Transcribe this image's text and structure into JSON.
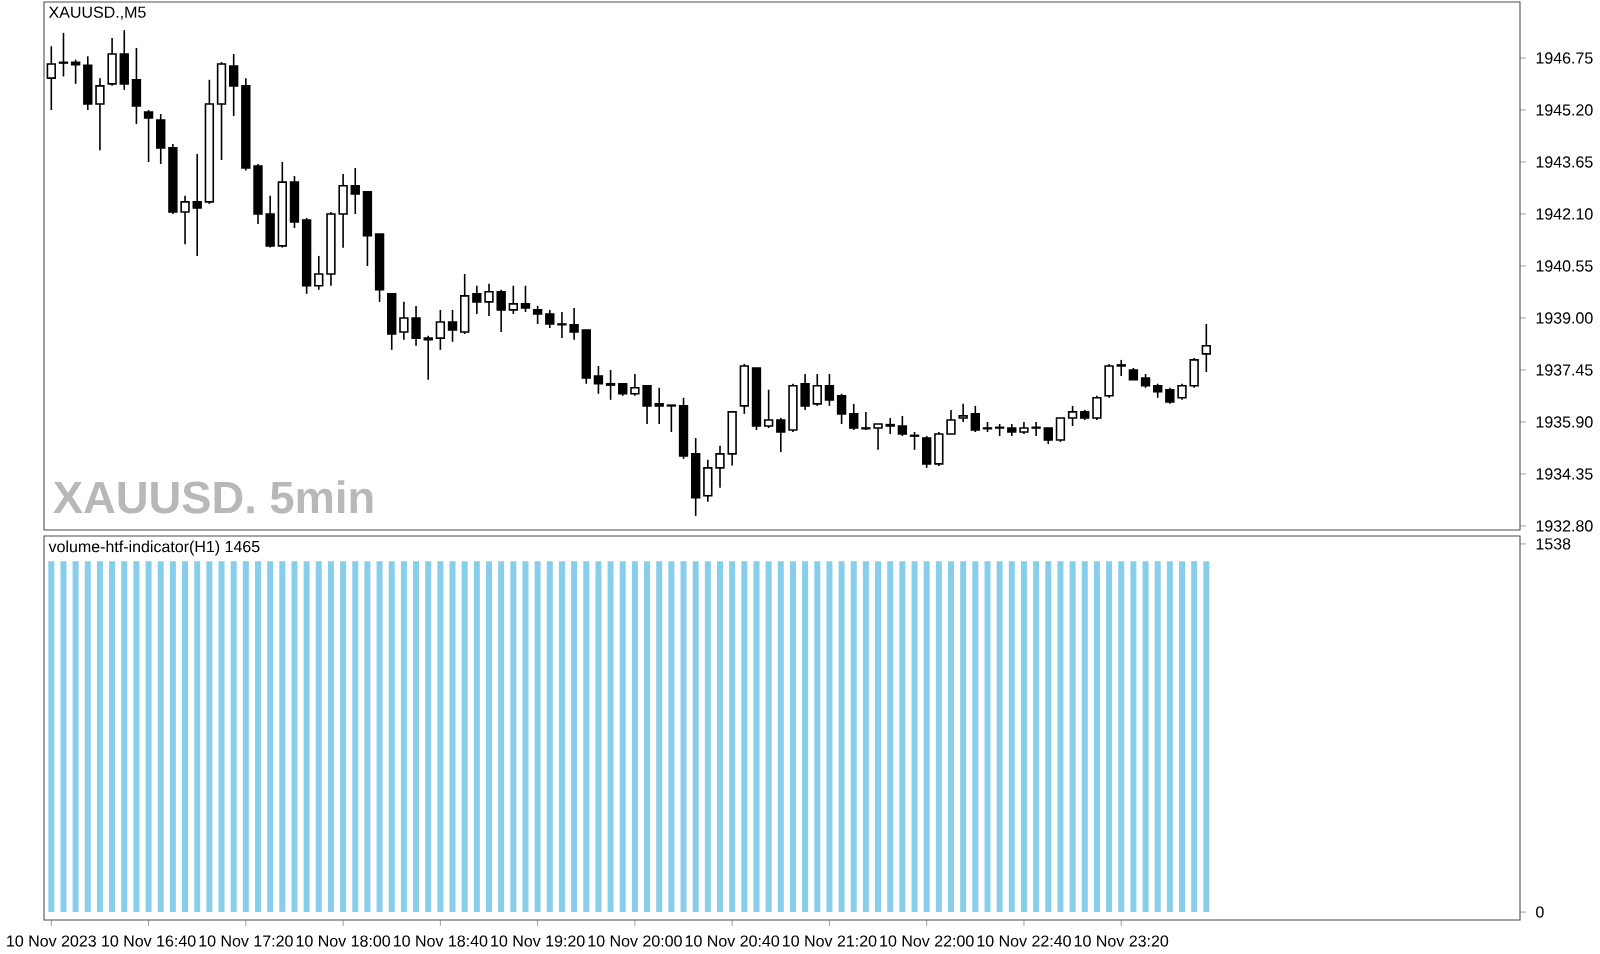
{
  "chart_data": [
    {
      "type": "candlestick",
      "title": "XAUUSD.,M5",
      "color": "#000000",
      "annotations": [
        "XAUUSD.  5min"
      ],
      "x": [
        "2023-11-10T16:00",
        "2023-11-10T16:05",
        "2023-11-10T16:10",
        "2023-11-10T16:15",
        "2023-11-10T16:20",
        "2023-11-10T16:25",
        "2023-11-10T16:30",
        "2023-11-10T16:35",
        "2023-11-10T16:40",
        "2023-11-10T16:45",
        "2023-11-10T16:50",
        "2023-11-10T16:55",
        "2023-11-10T17:00",
        "2023-11-10T17:05",
        "2023-11-10T17:10",
        "2023-11-10T17:15",
        "2023-11-10T17:20",
        "2023-11-10T17:25",
        "2023-11-10T17:30",
        "2023-11-10T17:35",
        "2023-11-10T17:40",
        "2023-11-10T17:45",
        "2023-11-10T17:50",
        "2023-11-10T17:55",
        "2023-11-10T18:00",
        "2023-11-10T18:05",
        "2023-11-10T18:10",
        "2023-11-10T18:15",
        "2023-11-10T18:20",
        "2023-11-10T18:25",
        "2023-11-10T18:30",
        "2023-11-10T18:35",
        "2023-11-10T18:40",
        "2023-11-10T18:45",
        "2023-11-10T18:50",
        "2023-11-10T18:55",
        "2023-11-10T19:00",
        "2023-11-10T19:05",
        "2023-11-10T19:10",
        "2023-11-10T19:15",
        "2023-11-10T19:20",
        "2023-11-10T19:25",
        "2023-11-10T19:30",
        "2023-11-10T19:35",
        "2023-11-10T19:40",
        "2023-11-10T19:45",
        "2023-11-10T19:50",
        "2023-11-10T19:55",
        "2023-11-10T20:00",
        "2023-11-10T20:05",
        "2023-11-10T20:10",
        "2023-11-10T20:15",
        "2023-11-10T20:20",
        "2023-11-10T20:25",
        "2023-11-10T20:30",
        "2023-11-10T20:35",
        "2023-11-10T20:40",
        "2023-11-10T20:45",
        "2023-11-10T20:50",
        "2023-11-10T20:55",
        "2023-11-10T21:00",
        "2023-11-10T21:05",
        "2023-11-10T21:10",
        "2023-11-10T21:15",
        "2023-11-10T21:20",
        "2023-11-10T21:25",
        "2023-11-10T21:30",
        "2023-11-10T21:35",
        "2023-11-10T21:40",
        "2023-11-10T21:45",
        "2023-11-10T21:50",
        "2023-11-10T21:55",
        "2023-11-10T22:00",
        "2023-11-10T22:05",
        "2023-11-10T22:10",
        "2023-11-10T22:15",
        "2023-11-10T22:20",
        "2023-11-10T22:25",
        "2023-11-10T22:30",
        "2023-11-10T22:35",
        "2023-11-10T22:40",
        "2023-11-10T22:45",
        "2023-11-10T22:50",
        "2023-11-10T22:55",
        "2023-11-10T23:00",
        "2023-11-10T23:05",
        "2023-11-10T23:10",
        "2023-11-10T23:15",
        "2023-11-10T23:20",
        "2023-11-10T23:25",
        "2023-11-10T23:30",
        "2023-11-10T23:35",
        "2023-11-10T23:40",
        "2023-11-10T23:45",
        "2023-11-10T23:50",
        "2023-11-10T23:55"
      ],
      "ohlc": [
        [
          1946.15,
          1947.1,
          1945.2,
          1946.57
        ],
        [
          1946.6,
          1947.5,
          1946.2,
          1946.62
        ],
        [
          1946.62,
          1946.7,
          1945.98,
          1946.55
        ],
        [
          1946.53,
          1946.8,
          1945.2,
          1945.38
        ],
        [
          1945.38,
          1946.15,
          1944.0,
          1945.92
        ],
        [
          1945.98,
          1947.35,
          1945.92,
          1946.87
        ],
        [
          1946.87,
          1947.58,
          1945.8,
          1945.98
        ],
        [
          1946.1,
          1947.05,
          1944.78,
          1945.32
        ],
        [
          1945.14,
          1945.2,
          1943.65,
          1944.96
        ],
        [
          1944.9,
          1945.08,
          1943.59,
          1944.07
        ],
        [
          1944.07,
          1944.19,
          1942.1,
          1942.16
        ],
        [
          1942.16,
          1942.64,
          1941.2,
          1942.46
        ],
        [
          1942.46,
          1943.89,
          1940.85,
          1942.28
        ],
        [
          1942.46,
          1946.1,
          1942.4,
          1945.38
        ],
        [
          1945.38,
          1946.63,
          1943.71,
          1946.57
        ],
        [
          1946.51,
          1946.87,
          1945.02,
          1945.92
        ],
        [
          1945.92,
          1946.15,
          1943.4,
          1943.47
        ],
        [
          1943.53,
          1943.59,
          1941.8,
          1942.1
        ],
        [
          1942.1,
          1942.64,
          1941.1,
          1941.15
        ],
        [
          1941.15,
          1943.65,
          1941.1,
          1943.05
        ],
        [
          1943.05,
          1943.23,
          1941.68,
          1941.86
        ],
        [
          1941.92,
          1941.98,
          1939.72,
          1939.96
        ],
        [
          1939.96,
          1940.85,
          1939.84,
          1940.31
        ],
        [
          1940.31,
          1942.16,
          1939.96,
          1942.1
        ],
        [
          1942.1,
          1943.29,
          1941.09,
          1942.94
        ],
        [
          1942.94,
          1943.47,
          1942.1,
          1942.7
        ],
        [
          1942.76,
          1942.76,
          1940.55,
          1941.45
        ],
        [
          1941.5,
          1941.5,
          1939.48,
          1939.84
        ],
        [
          1939.72,
          1939.72,
          1938.05,
          1938.52
        ],
        [
          1938.58,
          1939.48,
          1938.35,
          1939.0
        ],
        [
          1939.0,
          1939.36,
          1938.17,
          1938.4
        ],
        [
          1938.4,
          1938.47,
          1937.16,
          1938.35
        ],
        [
          1938.4,
          1939.24,
          1938.05,
          1938.88
        ],
        [
          1938.88,
          1939.24,
          1938.29,
          1938.64
        ],
        [
          1938.58,
          1940.31,
          1938.52,
          1939.66
        ],
        [
          1939.72,
          1939.96,
          1939.12,
          1939.48
        ],
        [
          1939.48,
          1940.02,
          1939.06,
          1939.78
        ],
        [
          1939.78,
          1939.84,
          1938.58,
          1939.24
        ],
        [
          1939.24,
          1939.96,
          1939.12,
          1939.42
        ],
        [
          1939.42,
          1939.96,
          1939.18,
          1939.3
        ],
        [
          1939.24,
          1939.36,
          1938.82,
          1939.12
        ],
        [
          1939.12,
          1939.24,
          1938.7,
          1938.82
        ],
        [
          1938.82,
          1939.18,
          1938.4,
          1938.8
        ],
        [
          1938.8,
          1939.3,
          1938.35,
          1938.58
        ],
        [
          1938.64,
          1938.64,
          1937.04,
          1937.21
        ],
        [
          1937.27,
          1937.57,
          1936.74,
          1937.04
        ],
        [
          1937.04,
          1937.45,
          1936.56,
          1937.0
        ],
        [
          1937.04,
          1937.04,
          1936.68,
          1936.74
        ],
        [
          1936.74,
          1937.33,
          1936.68,
          1936.92
        ],
        [
          1936.98,
          1936.98,
          1935.84,
          1936.38
        ],
        [
          1936.44,
          1936.92,
          1935.84,
          1936.38
        ],
        [
          1936.4,
          1936.4,
          1935.6,
          1936.38
        ],
        [
          1936.38,
          1936.62,
          1934.8,
          1934.89
        ],
        [
          1934.95,
          1935.42,
          1933.1,
          1933.64
        ],
        [
          1933.7,
          1934.77,
          1933.52,
          1934.53
        ],
        [
          1934.53,
          1935.19,
          1933.94,
          1934.95
        ],
        [
          1934.95,
          1936.2,
          1934.6,
          1936.2
        ],
        [
          1936.38,
          1937.63,
          1936.14,
          1937.57
        ],
        [
          1937.51,
          1937.51,
          1935.66,
          1935.78
        ],
        [
          1935.78,
          1936.86,
          1935.72,
          1935.96
        ],
        [
          1935.96,
          1936.02,
          1935.0,
          1935.6
        ],
        [
          1935.66,
          1937.04,
          1935.6,
          1936.98
        ],
        [
          1937.04,
          1937.33,
          1936.26,
          1936.38
        ],
        [
          1936.44,
          1937.33,
          1936.38,
          1936.98
        ],
        [
          1936.98,
          1937.33,
          1936.38,
          1936.56
        ],
        [
          1936.68,
          1936.74,
          1935.84,
          1936.14
        ],
        [
          1936.14,
          1936.44,
          1935.66,
          1935.72
        ],
        [
          1935.72,
          1936.2,
          1935.66,
          1935.7
        ],
        [
          1935.72,
          1935.84,
          1935.07,
          1935.84
        ],
        [
          1935.82,
          1936.02,
          1935.54,
          1935.78
        ],
        [
          1935.78,
          1936.08,
          1935.48,
          1935.54
        ],
        [
          1935.5,
          1935.6,
          1935.07,
          1935.48
        ],
        [
          1935.42,
          1935.48,
          1934.53,
          1934.65
        ],
        [
          1934.65,
          1935.6,
          1934.59,
          1935.54
        ],
        [
          1935.54,
          1936.26,
          1935.54,
          1935.96
        ],
        [
          1936.02,
          1936.44,
          1935.9,
          1936.08
        ],
        [
          1936.14,
          1936.38,
          1935.6,
          1935.66
        ],
        [
          1935.72,
          1935.9,
          1935.6,
          1935.7
        ],
        [
          1935.74,
          1935.84,
          1935.48,
          1935.72
        ],
        [
          1935.72,
          1935.84,
          1935.48,
          1935.6
        ],
        [
          1935.6,
          1935.9,
          1935.54,
          1935.72
        ],
        [
          1935.72,
          1935.9,
          1935.48,
          1935.74
        ],
        [
          1935.72,
          1935.72,
          1935.24,
          1935.36
        ],
        [
          1935.36,
          1936.02,
          1935.3,
          1936.02
        ],
        [
          1936.02,
          1936.38,
          1935.78,
          1936.2
        ],
        [
          1936.2,
          1936.26,
          1935.96,
          1936.02
        ],
        [
          1936.02,
          1936.68,
          1935.96,
          1936.62
        ],
        [
          1936.68,
          1937.63,
          1936.62,
          1937.57
        ],
        [
          1937.57,
          1937.75,
          1937.27,
          1937.6
        ],
        [
          1937.45,
          1937.51,
          1937.16,
          1937.16
        ],
        [
          1937.21,
          1937.33,
          1936.92,
          1936.98
        ],
        [
          1936.98,
          1937.04,
          1936.62,
          1936.8
        ],
        [
          1936.86,
          1936.92,
          1936.44,
          1936.5
        ],
        [
          1936.62,
          1937.04,
          1936.56,
          1936.98
        ],
        [
          1936.98,
          1937.81,
          1936.92,
          1937.75
        ],
        [
          1937.93,
          1938.82,
          1937.39,
          1938.17
        ]
      ],
      "xlim": [
        "2023-11-10T15:57",
        "2023-11-11T02:04"
      ],
      "ylim": [
        1932.68,
        1948.42
      ],
      "yticks": [
        {
          "value": 1932.8,
          "label": "1932.80"
        },
        {
          "value": 1934.35,
          "label": "1934.35"
        },
        {
          "value": 1935.9,
          "label": "1935.90"
        },
        {
          "value": 1937.45,
          "label": "1937.45"
        },
        {
          "value": 1939.0,
          "label": "1939.00"
        },
        {
          "value": 1940.55,
          "label": "1940.55"
        },
        {
          "value": 1942.1,
          "label": "1942.10"
        },
        {
          "value": 1943.65,
          "label": "1943.65"
        },
        {
          "value": 1945.2,
          "label": "1945.20"
        },
        {
          "value": 1946.75,
          "label": "1946.75"
        }
      ],
      "tick_labels": "y"
    },
    {
      "type": "bar",
      "title": "volume-htf-indicator(H1) 1465",
      "color": "#87ceeb",
      "x": [
        "2023-11-10T16:00",
        "2023-11-10T16:05",
        "2023-11-10T16:10",
        "2023-11-10T16:15",
        "2023-11-10T16:20",
        "2023-11-10T16:25",
        "2023-11-10T16:30",
        "2023-11-10T16:35",
        "2023-11-10T16:40",
        "2023-11-10T16:45",
        "2023-11-10T16:50",
        "2023-11-10T16:55",
        "2023-11-10T17:00",
        "2023-11-10T17:05",
        "2023-11-10T17:10",
        "2023-11-10T17:15",
        "2023-11-10T17:20",
        "2023-11-10T17:25",
        "2023-11-10T17:30",
        "2023-11-10T17:35",
        "2023-11-10T17:40",
        "2023-11-10T17:45",
        "2023-11-10T17:50",
        "2023-11-10T17:55",
        "2023-11-10T18:00",
        "2023-11-10T18:05",
        "2023-11-10T18:10",
        "2023-11-10T18:15",
        "2023-11-10T18:20",
        "2023-11-10T18:25",
        "2023-11-10T18:30",
        "2023-11-10T18:35",
        "2023-11-10T18:40",
        "2023-11-10T18:45",
        "2023-11-10T18:50",
        "2023-11-10T18:55",
        "2023-11-10T19:00",
        "2023-11-10T19:05",
        "2023-11-10T19:10",
        "2023-11-10T19:15",
        "2023-11-10T19:20",
        "2023-11-10T19:25",
        "2023-11-10T19:30",
        "2023-11-10T19:35",
        "2023-11-10T19:40",
        "2023-11-10T19:45",
        "2023-11-10T19:50",
        "2023-11-10T19:55",
        "2023-11-10T20:00",
        "2023-11-10T20:05",
        "2023-11-10T20:10",
        "2023-11-10T20:15",
        "2023-11-10T20:20",
        "2023-11-10T20:25",
        "2023-11-10T20:30",
        "2023-11-10T20:35",
        "2023-11-10T20:40",
        "2023-11-10T20:45",
        "2023-11-10T20:50",
        "2023-11-10T20:55",
        "2023-11-10T21:00",
        "2023-11-10T21:05",
        "2023-11-10T21:10",
        "2023-11-10T21:15",
        "2023-11-10T21:20",
        "2023-11-10T21:25",
        "2023-11-10T21:30",
        "2023-11-10T21:35",
        "2023-11-10T21:40",
        "2023-11-10T21:45",
        "2023-11-10T21:50",
        "2023-11-10T21:55",
        "2023-11-10T22:00",
        "2023-11-10T22:05",
        "2023-11-10T22:10",
        "2023-11-10T22:15",
        "2023-11-10T22:20",
        "2023-11-10T22:25",
        "2023-11-10T22:30",
        "2023-11-10T22:35",
        "2023-11-10T22:40",
        "2023-11-10T22:45",
        "2023-11-10T22:50",
        "2023-11-10T22:55",
        "2023-11-10T23:00",
        "2023-11-10T23:05",
        "2023-11-10T23:10",
        "2023-11-10T23:15",
        "2023-11-10T23:20",
        "2023-11-10T23:25",
        "2023-11-10T23:30",
        "2023-11-10T23:35",
        "2023-11-10T23:40",
        "2023-11-10T23:45",
        "2023-11-10T23:50",
        "2023-11-10T23:55"
      ],
      "values": [
        1465,
        1465,
        1465,
        1465,
        1465,
        1465,
        1465,
        1465,
        1465,
        1465,
        1465,
        1465,
        1465,
        1465,
        1465,
        1465,
        1465,
        1465,
        1465,
        1465,
        1465,
        1465,
        1465,
        1465,
        1465,
        1465,
        1465,
        1465,
        1465,
        1465,
        1465,
        1465,
        1465,
        1465,
        1465,
        1465,
        1465,
        1465,
        1465,
        1465,
        1465,
        1465,
        1465,
        1465,
        1465,
        1465,
        1465,
        1465,
        1465,
        1465,
        1465,
        1465,
        1465,
        1465,
        1465,
        1465,
        1465,
        1465,
        1465,
        1465,
        1465,
        1465,
        1465,
        1465,
        1465,
        1465,
        1465,
        1465,
        1465,
        1465,
        1465,
        1465,
        1465,
        1465,
        1465,
        1465,
        1465,
        1465,
        1465,
        1465,
        1465,
        1465,
        1465,
        1465,
        1465,
        1465,
        1465,
        1465,
        1465,
        1465,
        1465,
        1465,
        1465,
        1465,
        1465,
        1465
      ],
      "xlim": [
        "2023-11-10T15:57",
        "2023-11-11T02:04"
      ],
      "ylim": [
        -33,
        1571
      ],
      "yticks": [
        0,
        1538
      ],
      "xticks": [
        {
          "value": "2023-11-10T16:00",
          "label": "10 Nov 2023"
        },
        {
          "value": "2023-11-10T16:40",
          "label": "10 Nov 16:40"
        },
        {
          "value": "2023-11-10T17:20",
          "label": "10 Nov 17:20"
        },
        {
          "value": "2023-11-10T18:00",
          "label": "10 Nov 18:00"
        },
        {
          "value": "2023-11-10T18:40",
          "label": "10 Nov 18:40"
        },
        {
          "value": "2023-11-10T19:20",
          "label": "10 Nov 19:20"
        },
        {
          "value": "2023-11-10T20:00",
          "label": "10 Nov 20:00"
        },
        {
          "value": "2023-11-10T20:40",
          "label": "10 Nov 20:40"
        },
        {
          "value": "2023-11-10T21:20",
          "label": "10 Nov 21:20"
        },
        {
          "value": "2023-11-10T22:00",
          "label": "10 Nov 22:00"
        },
        {
          "value": "2023-11-10T22:40",
          "label": "10 Nov 22:40"
        },
        {
          "value": "2023-11-10T23:20",
          "label": "10 Nov 23:20"
        }
      ]
    }
  ]
}
